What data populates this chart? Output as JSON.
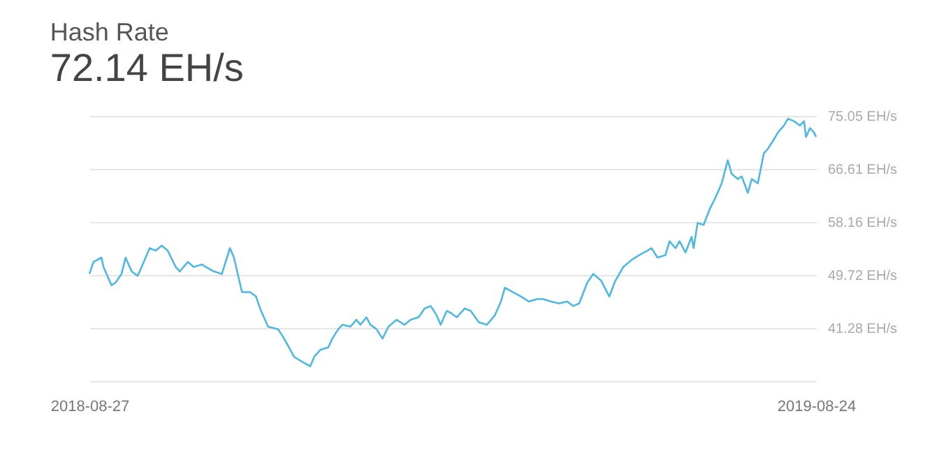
{
  "chart_data": {
    "type": "line",
    "title": "Hash Rate",
    "subtitle": "72.14 EH/s",
    "x": [
      "2018-08-27",
      "2018-08-29",
      "2018-09-02",
      "2018-09-03",
      "2018-09-07",
      "2018-09-09",
      "2018-09-12",
      "2018-09-14",
      "2018-09-17",
      "2018-09-20",
      "2018-09-22",
      "2018-09-26",
      "2018-09-29",
      "2018-10-02",
      "2018-10-05",
      "2018-10-09",
      "2018-10-11",
      "2018-10-15",
      "2018-10-18",
      "2018-10-22",
      "2018-10-24",
      "2018-10-28",
      "2018-11-01",
      "2018-11-05",
      "2018-11-07",
      "2018-11-11",
      "2018-11-15",
      "2018-11-18",
      "2018-11-20",
      "2018-11-24",
      "2018-11-29",
      "2018-12-02",
      "2018-12-07",
      "2018-12-11",
      "2018-12-15",
      "2018-12-17",
      "2018-12-20",
      "2018-12-24",
      "2018-12-26",
      "2018-12-29",
      "2018-12-31",
      "2019-01-04",
      "2019-01-07",
      "2019-01-09",
      "2019-01-12",
      "2019-01-14",
      "2019-01-17",
      "2019-01-20",
      "2019-01-23",
      "2019-01-27",
      "2019-01-31",
      "2019-02-03",
      "2019-02-07",
      "2019-02-10",
      "2019-02-13",
      "2019-02-16",
      "2019-02-18",
      "2019-02-21",
      "2019-02-23",
      "2019-02-26",
      "2019-03-02",
      "2019-03-05",
      "2019-03-09",
      "2019-03-13",
      "2019-03-17",
      "2019-03-20",
      "2019-03-22",
      "2019-03-26",
      "2019-03-30",
      "2019-04-03",
      "2019-04-07",
      "2019-04-10",
      "2019-04-14",
      "2019-04-18",
      "2019-04-22",
      "2019-04-25",
      "2019-04-28",
      "2019-05-02",
      "2019-05-05",
      "2019-05-09",
      "2019-05-13",
      "2019-05-16",
      "2019-05-20",
      "2019-05-24",
      "2019-05-28",
      "2019-06-01",
      "2019-06-03",
      "2019-06-06",
      "2019-06-10",
      "2019-06-12",
      "2019-06-15",
      "2019-06-17",
      "2019-06-20",
      "2019-06-23",
      "2019-06-24",
      "2019-06-26",
      "2019-06-29",
      "2019-07-02",
      "2019-07-05",
      "2019-07-08",
      "2019-07-11",
      "2019-07-13",
      "2019-07-16",
      "2019-07-18",
      "2019-07-21",
      "2019-07-23",
      "2019-07-26",
      "2019-07-29",
      "2019-07-31",
      "2019-08-03",
      "2019-08-05",
      "2019-08-08",
      "2019-08-10",
      "2019-08-13",
      "2019-08-16",
      "2019-08-18",
      "2019-08-19",
      "2019-08-21",
      "2019-08-23",
      "2019-08-24"
    ],
    "series": [
      {
        "color": "#4fb8e0",
        "values": [
          49.9,
          51.8,
          52.5,
          51.0,
          48.1,
          48.5,
          49.9,
          52.5,
          50.3,
          49.6,
          51.0,
          54.0,
          53.6,
          54.4,
          53.6,
          51.0,
          50.3,
          51.8,
          51.0,
          51.4,
          51.0,
          50.3,
          49.9,
          54.0,
          52.5,
          47.0,
          47.0,
          46.3,
          44.4,
          41.5,
          41.1,
          39.6,
          36.7,
          35.9,
          35.2,
          36.7,
          37.8,
          38.2,
          39.6,
          41.1,
          41.8,
          41.5,
          42.6,
          41.8,
          43.0,
          41.8,
          41.1,
          39.6,
          41.5,
          42.6,
          41.8,
          42.6,
          43.0,
          44.4,
          44.8,
          43.3,
          41.8,
          44.0,
          43.7,
          43.0,
          44.4,
          44.0,
          42.2,
          41.8,
          43.3,
          45.5,
          47.7,
          47.0,
          46.3,
          45.5,
          45.9,
          45.9,
          45.5,
          45.2,
          45.5,
          44.8,
          45.2,
          48.5,
          49.9,
          48.8,
          46.3,
          48.8,
          51.0,
          52.1,
          52.9,
          53.6,
          54.0,
          52.5,
          52.9,
          55.1,
          54.0,
          55.1,
          53.3,
          55.8,
          54.0,
          58.0,
          57.7,
          60.2,
          62.1,
          64.3,
          68.0,
          65.8,
          65.0,
          65.4,
          62.8,
          65.0,
          64.3,
          69.1,
          69.8,
          71.3,
          72.4,
          73.5,
          74.6,
          74.2,
          73.5,
          74.2,
          71.7,
          73.1,
          72.4,
          71.7
        ]
      }
    ],
    "xlim": [
      "2018-08-27",
      "2019-08-24"
    ],
    "xticks": [
      "2018-08-27",
      "2019-08-24"
    ],
    "ylim": [
      32.84,
      75.05
    ],
    "yticks": [
      {
        "value": 32.84,
        "label": null
      },
      {
        "value": 41.28,
        "label": "41.28 EH/s"
      },
      {
        "value": 49.72,
        "label": "49.72 EH/s"
      },
      {
        "value": 58.16,
        "label": "58.16 EH/s"
      },
      {
        "value": 66.61,
        "label": "66.61 EH/s"
      },
      {
        "value": 75.05,
        "label": "75.05 EH/s"
      }
    ],
    "grid": "y",
    "marker": "none",
    "line_style": "solid"
  }
}
